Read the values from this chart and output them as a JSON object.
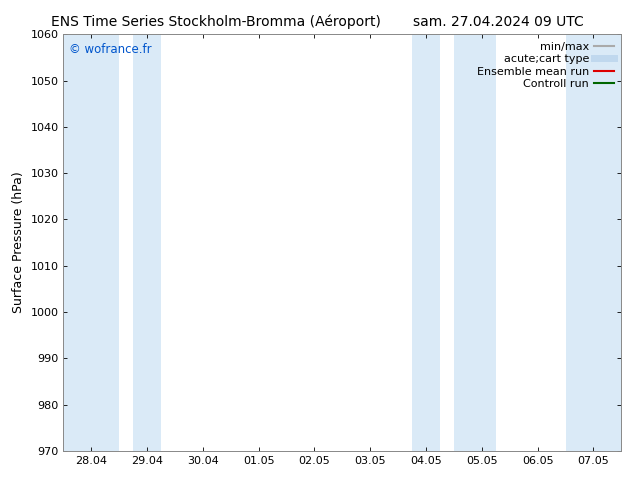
{
  "title_left": "ENS Time Series Stockholm-Bromma (Aéroport)",
  "title_right": "sam. 27.04.2024 09 UTC",
  "ylabel": "Surface Pressure (hPa)",
  "ylim": [
    970,
    1060
  ],
  "yticks": [
    970,
    980,
    990,
    1000,
    1010,
    1020,
    1030,
    1040,
    1050,
    1060
  ],
  "xtick_labels": [
    "28.04",
    "29.04",
    "30.04",
    "01.05",
    "02.05",
    "03.05",
    "04.05",
    "05.05",
    "06.05",
    "07.05"
  ],
  "xtick_positions": [
    1,
    2,
    3,
    4,
    5,
    6,
    7,
    8,
    9,
    10
  ],
  "xlim": [
    0.5,
    10.5
  ],
  "watermark": "© wofrance.fr",
  "watermark_color": "#0055cc",
  "background_color": "#ffffff",
  "plot_bg_color": "#ffffff",
  "shaded_bands": [
    {
      "x_start": 0.5,
      "x_end": 1.5,
      "color": "#daeaf7"
    },
    {
      "x_start": 1.75,
      "x_end": 2.25,
      "color": "#daeaf7"
    },
    {
      "x_start": 6.75,
      "x_end": 7.25,
      "color": "#daeaf7"
    },
    {
      "x_start": 7.5,
      "x_end": 8.25,
      "color": "#daeaf7"
    },
    {
      "x_start": 9.5,
      "x_end": 10.5,
      "color": "#daeaf7"
    }
  ],
  "legend_entries": [
    {
      "label": "min/max",
      "color": "#aaaaaa",
      "linewidth": 1.5
    },
    {
      "label": "acute;cart type",
      "color": "#c0d8ee",
      "linewidth": 5
    },
    {
      "label": "Ensemble mean run",
      "color": "#dd0000",
      "linewidth": 1.5
    },
    {
      "label": "Controll run",
      "color": "#006600",
      "linewidth": 1.5
    }
  ],
  "title_fontsize": 10,
  "axis_label_fontsize": 9,
  "tick_fontsize": 8,
  "legend_fontsize": 8
}
